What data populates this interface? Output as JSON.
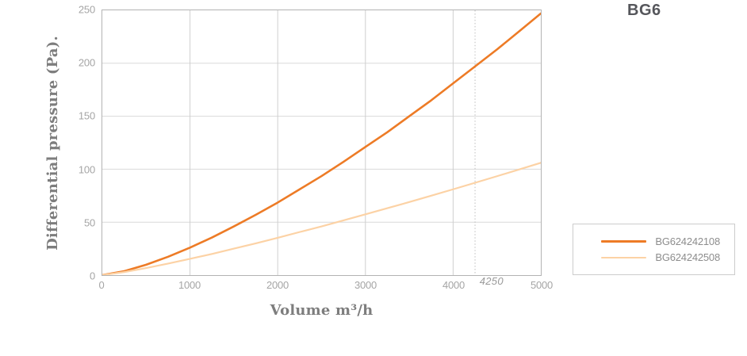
{
  "title": "BG6",
  "chart_data": {
    "type": "line",
    "title": "BG6",
    "xlabel": "Volume m³/h",
    "ylabel": "Differential pressure (Pa).",
    "xlim": [
      0,
      5000
    ],
    "ylim": [
      0,
      250
    ],
    "x_ticks": [
      0,
      1000,
      2000,
      3000,
      4000,
      5000
    ],
    "y_ticks": [
      0,
      50,
      100,
      150,
      200,
      250
    ],
    "grid": true,
    "legend_position": "outside-right-bottom",
    "reference_line": {
      "x": 4250,
      "label": "4250",
      "style": "dotted"
    },
    "x": [
      0,
      250,
      500,
      750,
      1000,
      1250,
      1500,
      1750,
      2000,
      2250,
      2500,
      2750,
      3000,
      3250,
      3500,
      3750,
      4000,
      4250,
      4500,
      4750,
      5000
    ],
    "series": [
      {
        "name": "BG624242108",
        "color": "#ed7b26",
        "stroke_width": 2.6,
        "values": [
          0,
          3.7,
          9.8,
          17.3,
          26,
          35.5,
          46,
          57,
          68.5,
          81,
          93.5,
          107,
          121,
          135,
          150,
          165,
          181,
          197,
          213,
          230,
          247
        ]
      },
      {
        "name": "BG624242508",
        "color": "#fcd2a5",
        "stroke_width": 2.2,
        "values": [
          0,
          2.9,
          6.7,
          10.9,
          15.4,
          20,
          25,
          30,
          35.3,
          40.7,
          46,
          51.7,
          57.4,
          63.2,
          69,
          75,
          81,
          87.2,
          93.4,
          99.7,
          106
        ]
      }
    ],
    "colors": {
      "grid_h": "#d9d9d9",
      "grid_v": "#cfcfcf",
      "reference": "#bdbdbd",
      "plot_border": "#b3b3b3",
      "tick_text": "#a5a5a5",
      "axis_title_text": "#7d7d7d",
      "title_text": "#55565b",
      "legend_border": "#cccccc",
      "legend_text": "#8d8d8d"
    }
  }
}
